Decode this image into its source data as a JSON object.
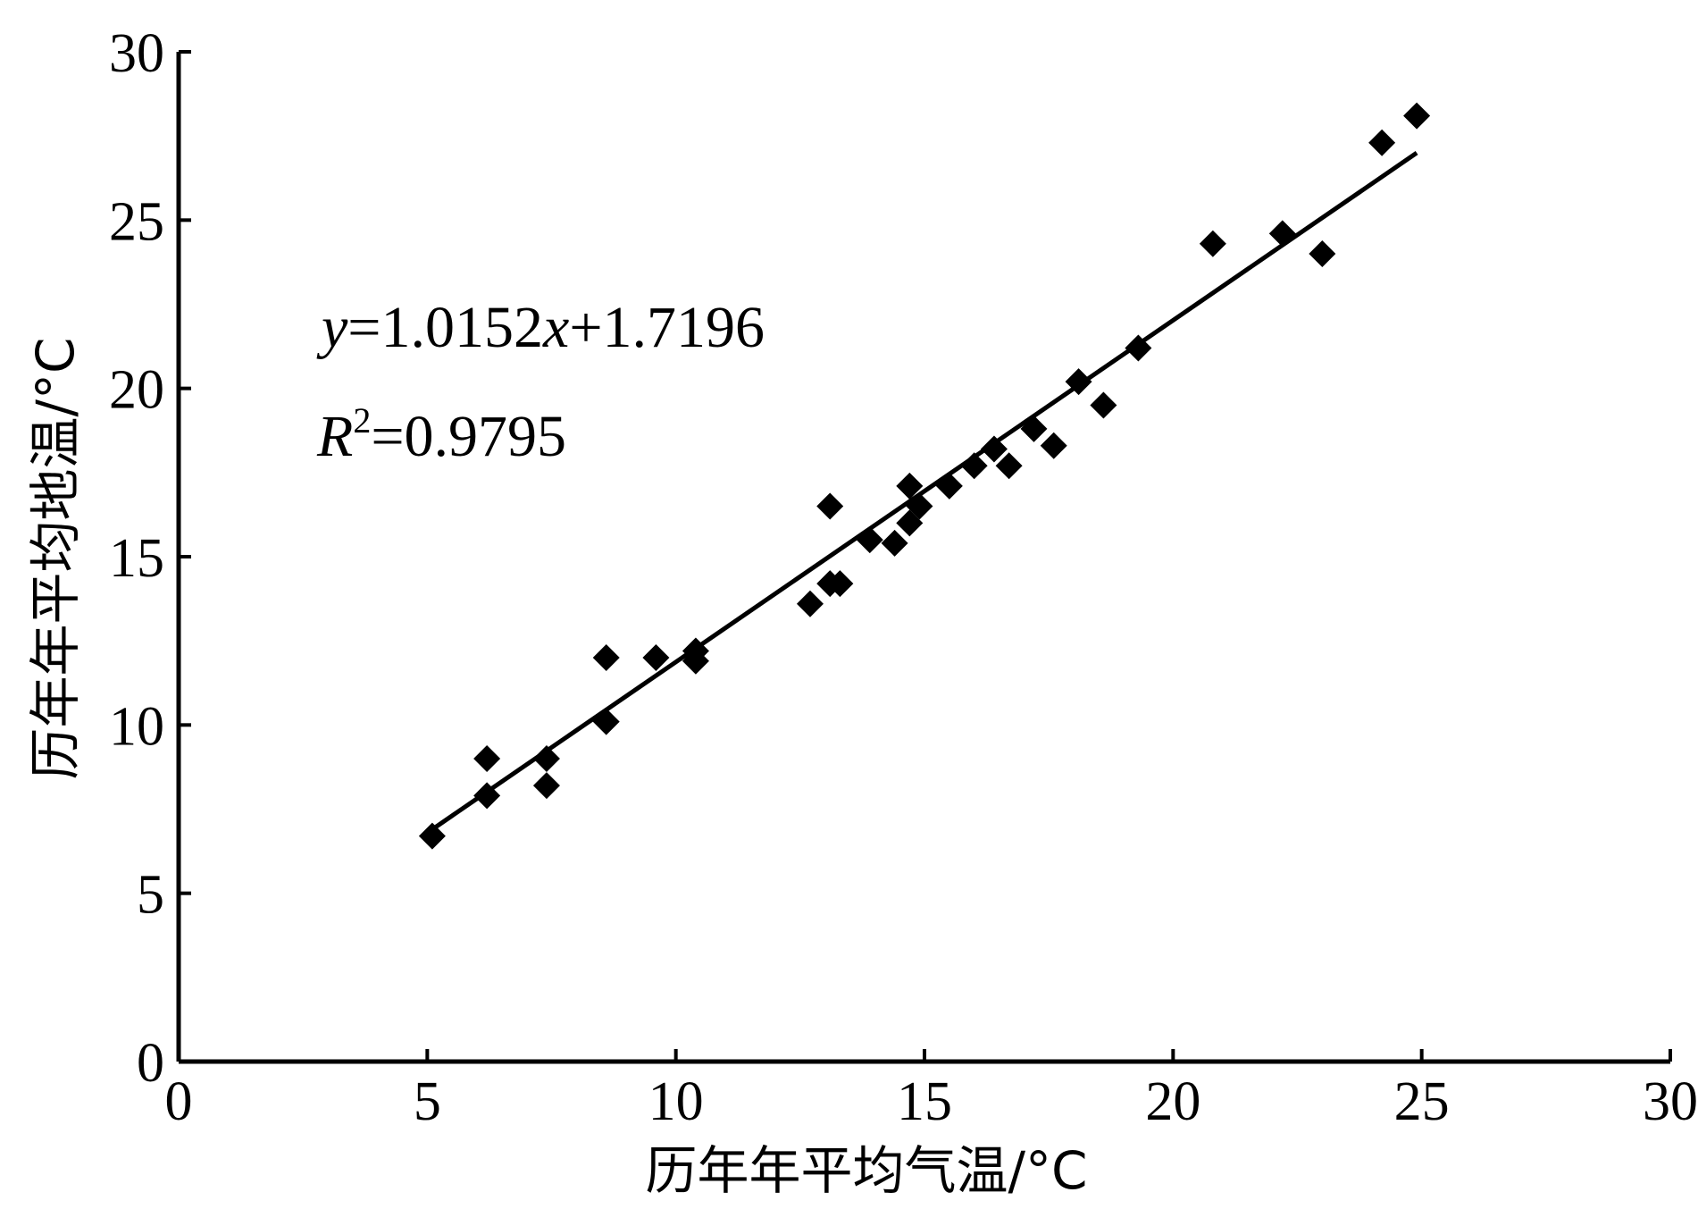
{
  "chart_data": {
    "type": "scatter",
    "xlabel": "历年年平均气温/°C",
    "ylabel": "历年年平均地温/°C",
    "xlim": [
      0,
      30
    ],
    "ylim": [
      0,
      30
    ],
    "x_ticks": [
      "0",
      "5",
      "10",
      "15",
      "20",
      "25",
      "30"
    ],
    "y_ticks": [
      "0",
      "5",
      "10",
      "15",
      "20",
      "25",
      "30"
    ],
    "grid": false,
    "equation": {
      "y_var": "y",
      "eq_sign": "=",
      "slope": "1.0152",
      "x_var": "x",
      "intercept": "+1.7196"
    },
    "r2": {
      "r": "R",
      "sup": "2",
      "value": "=0.9795"
    },
    "trendline": {
      "slope": 1.0152,
      "intercept": 1.7196,
      "x_range": [
        5.0,
        24.9
      ]
    },
    "series": [
      {
        "marker": "diamond",
        "color": "#000000",
        "points": [
          [
            5.1,
            6.7
          ],
          [
            6.2,
            9.0
          ],
          [
            6.2,
            7.9
          ],
          [
            7.4,
            9.0
          ],
          [
            7.4,
            8.2
          ],
          [
            8.6,
            12.0
          ],
          [
            8.6,
            10.1
          ],
          [
            9.6,
            12.0
          ],
          [
            10.4,
            12.2
          ],
          [
            10.4,
            11.9
          ],
          [
            12.7,
            13.6
          ],
          [
            13.1,
            16.5
          ],
          [
            13.1,
            14.2
          ],
          [
            13.3,
            14.2
          ],
          [
            13.9,
            15.5
          ],
          [
            14.4,
            15.4
          ],
          [
            14.7,
            17.1
          ],
          [
            14.7,
            16.0
          ],
          [
            14.9,
            16.5
          ],
          [
            15.5,
            17.1
          ],
          [
            16.0,
            17.7
          ],
          [
            16.4,
            18.2
          ],
          [
            16.7,
            17.7
          ],
          [
            17.2,
            18.8
          ],
          [
            17.6,
            18.3
          ],
          [
            18.1,
            20.2
          ],
          [
            18.6,
            19.5
          ],
          [
            19.3,
            21.2
          ],
          [
            20.8,
            24.3
          ],
          [
            22.2,
            24.6
          ],
          [
            23.0,
            24.0
          ],
          [
            24.2,
            27.3
          ],
          [
            24.9,
            28.1
          ]
        ]
      }
    ]
  }
}
